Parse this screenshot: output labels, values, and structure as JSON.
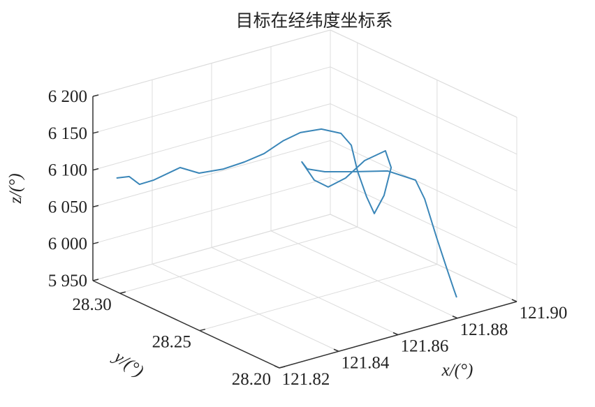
{
  "chart_data": {
    "type": "line3d",
    "title": "目标在经纬度坐标系",
    "xlabel": "x/(°)",
    "ylabel": "y/(°)",
    "zlabel": "z/(°)",
    "color": "#3a86b8",
    "grid": true,
    "xlim": [
      121.82,
      121.9
    ],
    "ylim": [
      28.2,
      28.317
    ],
    "zlim": [
      5950,
      6200
    ],
    "xticks": [
      121.82,
      121.84,
      121.86,
      121.88,
      {
        "value": 121.9,
        "label": "121.90"
      }
    ],
    "yticks": [
      {
        "value": 28.2,
        "label": "28.20"
      },
      28.25,
      {
        "value": 28.3,
        "label": "28.30"
      }
    ],
    "zticks": [
      {
        "value": 5950,
        "label": "5 950"
      },
      {
        "value": 6000,
        "label": "6 000"
      },
      {
        "value": 6050,
        "label": "6 050"
      },
      {
        "value": 6100,
        "label": "6 100"
      },
      {
        "value": 6150,
        "label": "6 150"
      },
      {
        "value": 6200,
        "label": "6 200"
      }
    ],
    "x": [
      121.8242,
      121.8258,
      121.8266,
      121.8287,
      121.8349,
      121.8386,
      121.8441,
      121.8485,
      121.8524,
      121.8561,
      121.8593,
      121.8637,
      121.8676,
      121.8684,
      121.8678,
      121.8682,
      121.8681,
      121.8687,
      121.8684,
      121.8638,
      121.8541,
      121.8477,
      121.8445,
      121.8425,
      121.841,
      121.8455,
      121.8541,
      121.8674,
      121.8753,
      121.882,
      121.8824,
      121.8837,
      121.8845,
      121.8842,
      121.8851
    ],
    "y": [
      28.31,
      28.305,
      28.3,
      28.295,
      28.29,
      28.285,
      28.28,
      28.275,
      28.27,
      28.265,
      28.26,
      28.255,
      28.25,
      28.245,
      28.24,
      28.235,
      28.23,
      28.225,
      28.22,
      28.215,
      28.21,
      28.21,
      28.215,
      28.22,
      28.225,
      28.23,
      28.235,
      28.24,
      28.235,
      28.23,
      28.225,
      28.22,
      28.215,
      28.21,
      28.21
    ],
    "z": [
      6091.6,
      6096.8,
      6090.4,
      6098.9,
      6114.0,
      6107.3,
      6111.8,
      6121.4,
      6133.4,
      6151.5,
      6164.3,
      6169.2,
      6164.1,
      6152.1,
      6122.8,
      6092.4,
      6074.9,
      6103.8,
      6147.1,
      6180.1,
      6182.8,
      6166.3,
      6152.6,
      6159.2,
      6180.5,
      6160.9,
      6142.3,
      6122.4,
      6119.5,
      6104.7,
      6083.7,
      6035.2,
      5996.8,
      5973.8,
      5962.3
    ]
  }
}
